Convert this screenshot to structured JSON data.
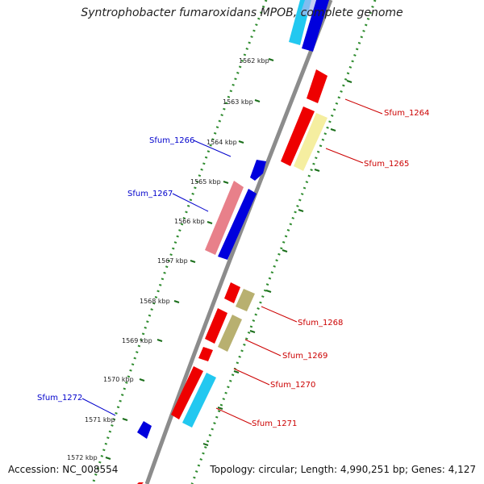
{
  "title": "Syntrophobacter fumaroxidans MPOB, complete genome",
  "footer": {
    "accession": "Accession: NC_008554",
    "summary": "Topology: circular; Length: 4,990,251 bp; Genes: 4,127"
  },
  "colors": {
    "backbone": "#8c8c8c",
    "dotted_ring": "#2e8b2e",
    "forward_label": "#0000cc",
    "reverse_label": "#cc0000"
  },
  "tick_labels": [
    "1562 kbp",
    "1563 kbp",
    "1564 kbp",
    "1565 kbp",
    "1566 kbp",
    "1567 kbp",
    "1568 kbp",
    "1569 kbp",
    "1570 kbp",
    "1571 kbp",
    "1572 kbp"
  ],
  "gene_labels": {
    "forward": [
      "Sfum_1266",
      "Sfum_1267",
      "Sfum_1272"
    ],
    "reverse": [
      "Sfum_1264",
      "Sfum_1265",
      "Sfum_1268",
      "Sfum_1269",
      "Sfum_1270",
      "Sfum_1271"
    ]
  }
}
